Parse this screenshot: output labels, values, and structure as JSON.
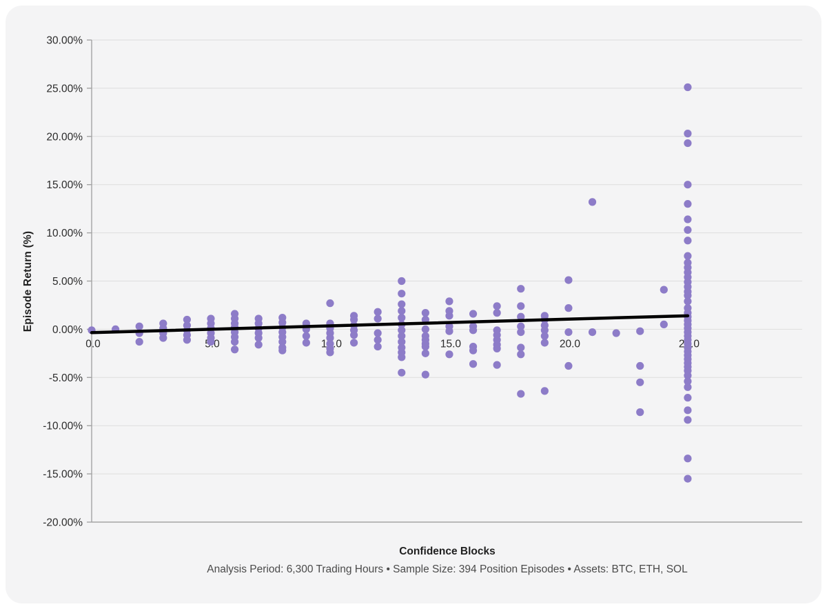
{
  "chart_data": {
    "type": "scatter",
    "xlabel": "Confidence Blocks",
    "ylabel": "Episode Return (%)",
    "subtitle": "Analysis Period: 6,300 Trading Hours • Sample Size: 394 Position Episodes • Assets: BTC, ETH, SOL",
    "xlim": [
      0,
      29.8
    ],
    "ylim": [
      -20,
      30
    ],
    "grid": true,
    "legend_position": "none",
    "x_ticks": {
      "values": [
        0,
        5,
        10,
        15,
        20,
        25
      ],
      "labels": [
        "0.0",
        "5.0",
        "10.0",
        "15.0",
        "20.0",
        "25.0"
      ]
    },
    "y_ticks": {
      "values": [
        30,
        25,
        20,
        15,
        10,
        5,
        0,
        -5,
        -10,
        -15,
        -20
      ],
      "labels": [
        "30.00%",
        "25.00%",
        "20.00%",
        "15.00%",
        "10.00%",
        "5.00%",
        "0.00%",
        "-5.00%",
        "-10.00%",
        "-15.00%",
        "-20.00%"
      ]
    },
    "colors": {
      "point": "#8d7cc8",
      "trend": "#000000",
      "grid": "#dddddd",
      "axis": "#a3a3a3",
      "tick_text": "#2b2b2b",
      "card_background": "#f4f4f5",
      "page_background": "#ffffff"
    },
    "trendline": {
      "x": [
        0,
        25
      ],
      "y": [
        -0.35,
        1.4
      ]
    },
    "series": [
      {
        "name": "Position Episodes",
        "groups": [
          {
            "x": 0,
            "returns": [
              -0.1
            ]
          },
          {
            "x": 1,
            "returns": [
              0.0
            ]
          },
          {
            "x": 2,
            "returns": [
              0.3,
              -0.4,
              -1.3
            ]
          },
          {
            "x": 3,
            "returns": [
              0.6,
              0.1,
              -0.4,
              -0.9
            ]
          },
          {
            "x": 4,
            "returns": [
              1.0,
              0.4,
              -0.1,
              -0.6,
              -1.1
            ]
          },
          {
            "x": 5,
            "returns": [
              1.1,
              0.6,
              0.1,
              -0.4,
              -0.9,
              -1.3
            ]
          },
          {
            "x": 6,
            "returns": [
              1.6,
              1.1,
              0.6,
              0.2,
              -0.3,
              -0.8,
              -1.3,
              -2.1
            ]
          },
          {
            "x": 7,
            "returns": [
              1.1,
              0.6,
              0.1,
              -0.4,
              -0.9,
              -1.6
            ]
          },
          {
            "x": 8,
            "returns": [
              1.2,
              0.7,
              0.2,
              -0.3,
              -0.8,
              -1.3,
              -1.9,
              -2.2
            ]
          },
          {
            "x": 9,
            "returns": [
              0.6,
              0.0,
              -0.7,
              -1.4
            ]
          },
          {
            "x": 10,
            "returns": [
              2.7,
              0.6,
              0.1,
              -0.4,
              -0.9,
              -1.5,
              -2.0,
              -2.4
            ]
          },
          {
            "x": 11,
            "returns": [
              1.4,
              1.0,
              0.4,
              -0.1,
              -0.6,
              -1.4
            ]
          },
          {
            "x": 12,
            "returns": [
              1.8,
              1.1,
              -0.4,
              -1.1,
              -1.8
            ]
          },
          {
            "x": 13,
            "returns": [
              5.0,
              3.7,
              2.6,
              1.9,
              1.2,
              0.5,
              -0.1,
              -0.7,
              -1.3,
              -1.9,
              -2.4,
              -2.9,
              -4.5
            ]
          },
          {
            "x": 14,
            "returns": [
              1.7,
              1.0,
              0.0,
              -0.7,
              -1.1,
              -1.5,
              -1.8,
              -2.5,
              -4.7
            ]
          },
          {
            "x": 15,
            "returns": [
              2.9,
              1.9,
              1.4,
              0.3,
              -0.2,
              -2.6
            ]
          },
          {
            "x": 16,
            "returns": [
              1.6,
              0.3,
              -0.1,
              -1.8,
              -2.2,
              -3.6
            ]
          },
          {
            "x": 17,
            "returns": [
              2.4,
              1.7,
              -0.1,
              -0.6,
              -1.1,
              -1.6,
              -2.0,
              -3.7
            ]
          },
          {
            "x": 18,
            "returns": [
              4.2,
              2.4,
              1.3,
              0.3,
              -0.3,
              -1.9,
              -2.6,
              -6.7
            ]
          },
          {
            "x": 19,
            "returns": [
              1.4,
              1.0,
              0.4,
              -0.1,
              -0.7,
              -1.4,
              -6.4
            ]
          },
          {
            "x": 20,
            "returns": [
              5.1,
              2.2,
              -0.3,
              -3.8
            ]
          },
          {
            "x": 21,
            "returns": [
              13.2,
              -0.3
            ]
          },
          {
            "x": 22,
            "returns": [
              -0.4
            ]
          },
          {
            "x": 23,
            "returns": [
              -0.2,
              -3.8,
              -5.5,
              -8.6
            ]
          },
          {
            "x": 24,
            "returns": [
              4.1,
              0.5
            ]
          },
          {
            "x": 25,
            "returns": [
              25.1,
              20.3,
              19.3,
              15.0,
              13.0,
              11.4,
              10.3,
              9.2,
              7.6,
              6.9,
              6.4,
              5.9,
              5.4,
              4.9,
              4.4,
              3.9,
              3.5,
              2.9,
              2.2,
              1.7,
              1.3,
              0.9,
              0.5,
              0.1,
              -0.3,
              -0.7,
              -1.1,
              -1.5,
              -1.9,
              -2.3,
              -2.7,
              -3.1,
              -3.5,
              -3.9,
              -4.3,
              -4.8,
              -5.4,
              -6.0,
              -7.1,
              -8.4,
              -9.4,
              -13.4,
              -15.5
            ]
          }
        ]
      }
    ]
  }
}
